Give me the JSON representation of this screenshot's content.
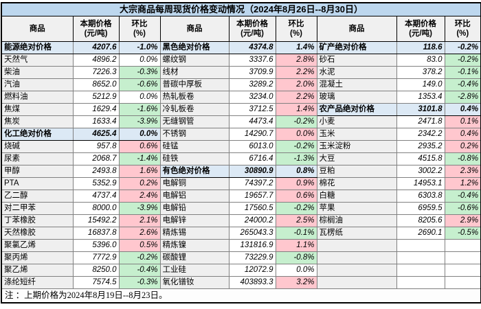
{
  "title": "大宗商品每周现货价格变动情况（2024年8月26日--8月30日）",
  "footnote": "注 ：上期价格为2024年8月19日--8月23日。",
  "header": {
    "commodity": "商品",
    "price1": "本期价格",
    "price2": "(元/吨)",
    "pct1": "环比",
    "pct2": "(%)"
  },
  "colors": {
    "title_bg": "#BDD7EE",
    "header_bg": "#F0F0F0",
    "name_bg": "#EFEFEF",
    "section_bg": "#DCE9F5",
    "up_bg": "#FFC7CE",
    "up_text": "#C00000",
    "down_bg": "#C6EFCE",
    "down_text": "#2CA049"
  },
  "groups": [
    {
      "rows": [
        {
          "name": "能源绝对价格",
          "price": "4207.6",
          "pct": "-1.0%",
          "style": "section"
        },
        {
          "name": "天然气",
          "price": "4896.2",
          "pct": "0.0%",
          "style": "flat"
        },
        {
          "name": "柴油",
          "price": "7226.3",
          "pct": "-0.3%",
          "style": "down"
        },
        {
          "name": "汽油",
          "price": "8652.0",
          "pct": "-0.6%",
          "style": "down"
        },
        {
          "name": "燃料油",
          "price": "5212.9",
          "pct": "0.0%",
          "style": "flat"
        },
        {
          "name": "焦煤",
          "price": "1629.4",
          "pct": "-1.6%",
          "style": "down"
        },
        {
          "name": "焦炭",
          "price": "1633.4",
          "pct": "-3.9%",
          "style": "down"
        },
        {
          "name": "化工绝对价格",
          "price": "4625.4",
          "pct": "0.0%",
          "style": "section"
        },
        {
          "name": "烧碱",
          "price": "957.8",
          "pct": "0.6%",
          "style": "up"
        },
        {
          "name": "尿素",
          "price": "2068.7",
          "pct": "-1.4%",
          "style": "down"
        },
        {
          "name": "甲醇",
          "price": "2493.8",
          "pct": "1.6%",
          "style": "up"
        },
        {
          "name": "PTA",
          "price": "5352.9",
          "pct": "0.2%",
          "style": "up"
        },
        {
          "name": "乙二醇",
          "price": "4737.4",
          "pct": "2.4%",
          "style": "up"
        },
        {
          "name": "对二甲苯",
          "price": "8000.0",
          "pct": "-3.9%",
          "style": "down"
        },
        {
          "name": "丁苯橡胶",
          "price": "15492.2",
          "pct": "2.1%",
          "style": "up"
        },
        {
          "name": "天然橡胶",
          "price": "16837.8",
          "pct": "2.6%",
          "style": "up"
        },
        {
          "name": "聚氯乙烯",
          "price": "5396.0",
          "pct": "0.5%",
          "style": "up"
        },
        {
          "name": "聚丙烯",
          "price": "7772.9",
          "pct": "-0.2%",
          "style": "down"
        },
        {
          "name": "聚乙烯",
          "price": "8250.0",
          "pct": "-0.4%",
          "style": "down"
        },
        {
          "name": "涤纶短纤",
          "price": "7574.5",
          "pct": "-0.3%",
          "style": "down"
        }
      ]
    },
    {
      "rows": [
        {
          "name": "黑色绝对价格",
          "price": "4374.8",
          "pct": "1.4%",
          "style": "section"
        },
        {
          "name": "螺纹钢",
          "price": "3337.6",
          "pct": "2.8%",
          "style": "up"
        },
        {
          "name": "线材",
          "price": "3709.9",
          "pct": "2.2%",
          "style": "up"
        },
        {
          "name": "普碳中厚板",
          "price": "3289.2",
          "pct": "2.0%",
          "style": "up"
        },
        {
          "name": "热轧板卷",
          "price": "3234.0",
          "pct": "2.2%",
          "style": "up"
        },
        {
          "name": "冷轧板卷",
          "price": "3712.5",
          "pct": "1.4%",
          "style": "up"
        },
        {
          "name": "无缝钢管",
          "price": "4473.4",
          "pct": "-0.2%",
          "style": "down"
        },
        {
          "name": "不锈钢",
          "price": "14290.7",
          "pct": "0.0%",
          "style": "up"
        },
        {
          "name": "硅锰",
          "price": "6013.0",
          "pct": "-0.2%",
          "style": "down"
        },
        {
          "name": "硅铁",
          "price": "6716.4",
          "pct": "-1.3%",
          "style": "down"
        },
        {
          "name": "有色绝对价格",
          "price": "30890.9",
          "pct": "0.8%",
          "style": "section"
        },
        {
          "name": "电解铜",
          "price": "74397.2",
          "pct": "0.9%",
          "style": "up"
        },
        {
          "name": "电解铝",
          "price": "19657.7",
          "pct": "0.6%",
          "style": "up"
        },
        {
          "name": "电解铅",
          "price": "17560.5",
          "pct": "-0.2%",
          "style": "down"
        },
        {
          "name": "电解锌",
          "price": "24000.2",
          "pct": "2.5%",
          "style": "up"
        },
        {
          "name": "精炼锡",
          "price": "265043.3",
          "pct": "-0.1%",
          "style": "down"
        },
        {
          "name": "精炼镍",
          "price": "131816.9",
          "pct": "1.1%",
          "style": "up"
        },
        {
          "name": "碳酸锂",
          "price": "73229.9",
          "pct": "-0.8%",
          "style": "down"
        },
        {
          "name": "工业硅",
          "price": "12072.9",
          "pct": "0.0%",
          "style": "flat"
        },
        {
          "name": "氧化镨钕",
          "price": "403893.3",
          "pct": "3.2%",
          "style": "up"
        }
      ]
    },
    {
      "rows": [
        {
          "name": "矿产绝对价格",
          "price": "118.6",
          "pct": "-0.2%",
          "style": "section"
        },
        {
          "name": "砂石",
          "price": "83.0",
          "pct": "-0.2%",
          "style": "down"
        },
        {
          "name": "水泥",
          "price": "378.2",
          "pct": "-0.1%",
          "style": "down"
        },
        {
          "name": "混凝土",
          "price": "149.0",
          "pct": "-0.4%",
          "style": "down"
        },
        {
          "name": "玻璃",
          "price": "1353.4",
          "pct": "-2.8%",
          "style": "down"
        },
        {
          "name": "农产品绝对价格",
          "price": "3101.8",
          "pct": "0.4%",
          "style": "section"
        },
        {
          "name": "小麦",
          "price": "2471.8",
          "pct": "0.1%",
          "style": "up"
        },
        {
          "name": "玉米",
          "price": "2342.2",
          "pct": "0.4%",
          "style": "up"
        },
        {
          "name": "玉米淀粉",
          "price": "2935.2",
          "pct": "0.2%",
          "style": "up"
        },
        {
          "name": "大豆",
          "price": "4515.8",
          "pct": "-0.8%",
          "style": "down"
        },
        {
          "name": "豆粕",
          "price": "3002.2",
          "pct": "2.3%",
          "style": "up"
        },
        {
          "name": "棉花",
          "price": "14953.1",
          "pct": "1.2%",
          "style": "up"
        },
        {
          "name": "白糖",
          "price": "6303.8",
          "pct": "-0.4%",
          "style": "down"
        },
        {
          "name": "苹果",
          "price": "6959.5",
          "pct": "-0.6%",
          "style": "down"
        },
        {
          "name": "棕榈油",
          "price": "8205.6",
          "pct": "2.9%",
          "style": "up"
        },
        {
          "name": "瓦楞纸",
          "price": "2690.1",
          "pct": "-0.5%",
          "style": "down"
        },
        {
          "name": "",
          "price": "",
          "pct": "",
          "style": "empty"
        },
        {
          "name": "",
          "price": "",
          "pct": "",
          "style": "empty"
        },
        {
          "name": "",
          "price": "",
          "pct": "",
          "style": "empty"
        },
        {
          "name": "",
          "price": "",
          "pct": "",
          "style": "empty"
        }
      ]
    }
  ]
}
